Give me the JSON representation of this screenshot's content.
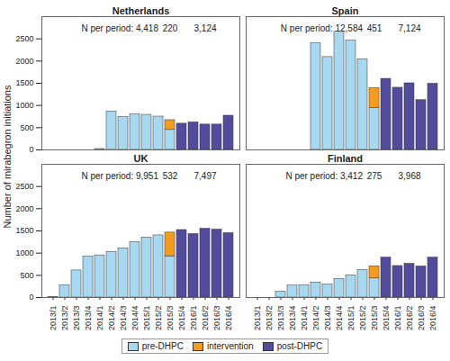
{
  "chart_data": [
    {
      "type": "bar",
      "title": "Netherlands",
      "ylabel": "Number of mirabegron initiations",
      "stacked": true,
      "legend": "bottom",
      "categories": [
        "2013/1",
        "2013/2",
        "2013/3",
        "2013/4",
        "2014/1",
        "2014/2",
        "2014/3",
        "2014/4",
        "2015/1",
        "2015/2",
        "2015/3",
        "2015/4",
        "2016/1",
        "2016/2",
        "2016/3",
        "2016/4"
      ],
      "series": [
        {
          "name": "pre-DHPC",
          "color": "#a8d8f0",
          "values": [
            null,
            null,
            null,
            null,
            20,
            860,
            740,
            800,
            790,
            750,
            450,
            null,
            null,
            null,
            null,
            null
          ]
        },
        {
          "name": "intervention",
          "color": "#f39c1f",
          "values": [
            null,
            null,
            null,
            null,
            null,
            null,
            null,
            null,
            null,
            null,
            220,
            null,
            null,
            null,
            null,
            null
          ]
        },
        {
          "name": "post-DHPC",
          "color": "#534b9b",
          "values": [
            null,
            null,
            null,
            null,
            null,
            null,
            null,
            null,
            null,
            null,
            null,
            590,
            620,
            570,
            570,
            770
          ]
        }
      ],
      "n_per_period": {
        "label": "N per period:",
        "values": [
          4418,
          220,
          3124
        ],
        "value_labels": [
          "4,418",
          "220",
          "3,124"
        ]
      },
      "ylim": [
        0,
        3000
      ],
      "yticks": [
        0,
        500,
        1000,
        1500,
        2000,
        2500
      ],
      "grid": false
    },
    {
      "type": "bar",
      "title": "Spain",
      "ylabel": "Number of mirabegron initiations",
      "stacked": true,
      "legend": "bottom",
      "categories": [
        "2013/1",
        "2013/2",
        "2013/3",
        "2013/4",
        "2014/1",
        "2014/2",
        "2014/3",
        "2014/4",
        "2015/1",
        "2015/2",
        "2015/3",
        "2015/4",
        "2016/1",
        "2016/2",
        "2016/3",
        "2016/4"
      ],
      "series": [
        {
          "name": "pre-DHPC",
          "color": "#a8d8f0",
          "values": [
            null,
            null,
            null,
            null,
            null,
            2400,
            2090,
            2660,
            2460,
            2040,
            940,
            null,
            null,
            null,
            null,
            null
          ]
        },
        {
          "name": "intervention",
          "color": "#f39c1f",
          "values": [
            null,
            null,
            null,
            null,
            null,
            null,
            null,
            null,
            null,
            null,
            451,
            null,
            null,
            null,
            null,
            null
          ]
        },
        {
          "name": "post-DHPC",
          "color": "#534b9b",
          "values": [
            null,
            null,
            null,
            null,
            null,
            null,
            null,
            null,
            null,
            null,
            null,
            1600,
            1400,
            1500,
            1120,
            1490
          ]
        }
      ],
      "n_per_period": {
        "label": "N per period:",
        "values": [
          12584,
          451,
          7124
        ],
        "value_labels": [
          "12,584",
          "451",
          "7,124"
        ]
      },
      "ylim": [
        0,
        3000
      ],
      "yticks": [
        0,
        500,
        1000,
        1500,
        2000,
        2500
      ],
      "grid": false
    },
    {
      "type": "bar",
      "title": "UK",
      "ylabel": "Number of mirabegron initiations",
      "stacked": true,
      "legend": "bottom",
      "categories": [
        "2013/1",
        "2013/2",
        "2013/3",
        "2013/4",
        "2014/1",
        "2014/2",
        "2014/3",
        "2014/4",
        "2015/1",
        "2015/2",
        "2015/3",
        "2015/4",
        "2016/1",
        "2016/2",
        "2016/3",
        "2016/4"
      ],
      "series": [
        {
          "name": "pre-DHPC",
          "color": "#a8d8f0",
          "values": [
            10,
            280,
            610,
            920,
            950,
            1030,
            1110,
            1250,
            1350,
            1400,
            930,
            null,
            null,
            null,
            null,
            null
          ]
        },
        {
          "name": "intervention",
          "color": "#f39c1f",
          "values": [
            null,
            null,
            null,
            null,
            null,
            null,
            null,
            null,
            null,
            null,
            532,
            null,
            null,
            null,
            null,
            null
          ]
        },
        {
          "name": "post-DHPC",
          "color": "#534b9b",
          "values": [
            null,
            null,
            null,
            null,
            null,
            null,
            null,
            null,
            null,
            null,
            null,
            1520,
            1430,
            1550,
            1530,
            1450
          ]
        }
      ],
      "n_per_period": {
        "label": "N per period:",
        "values": [
          9951,
          532,
          7497
        ],
        "value_labels": [
          "9,951",
          "532",
          "7,497"
        ]
      },
      "ylim": [
        0,
        3000
      ],
      "yticks": [
        0,
        500,
        1000,
        1500,
        2000,
        2500
      ],
      "grid": false
    },
    {
      "type": "bar",
      "title": "Finland",
      "ylabel": "Number of mirabegron initiations",
      "stacked": true,
      "legend": "bottom",
      "categories": [
        "2013/1",
        "2013/2",
        "2013/3",
        "2013/4",
        "2014/1",
        "2014/2",
        "2014/3",
        "2014/4",
        "2015/1",
        "2015/2",
        "2015/3",
        "2015/4",
        "2016/1",
        "2016/2",
        "2016/3",
        "2016/4"
      ],
      "series": [
        {
          "name": "pre-DHPC",
          "color": "#a8d8f0",
          "values": [
            null,
            null,
            130,
            270,
            280,
            340,
            290,
            420,
            500,
            620,
            430,
            null,
            null,
            null,
            null,
            null
          ]
        },
        {
          "name": "intervention",
          "color": "#f39c1f",
          "values": [
            null,
            null,
            null,
            null,
            null,
            null,
            null,
            null,
            null,
            null,
            275,
            null,
            null,
            null,
            null,
            null
          ]
        },
        {
          "name": "post-DHPC",
          "color": "#534b9b",
          "values": [
            null,
            null,
            null,
            null,
            null,
            null,
            null,
            null,
            null,
            null,
            null,
            900,
            710,
            760,
            700,
            900
          ]
        }
      ],
      "n_per_period": {
        "label": "N per period:",
        "values": [
          3412,
          275,
          3968
        ],
        "value_labels": [
          "3,412",
          "275",
          "3,968"
        ]
      },
      "ylim": [
        0,
        3000
      ],
      "yticks": [
        0,
        500,
        1000,
        1500,
        2000,
        2500
      ],
      "grid": false
    }
  ]
}
